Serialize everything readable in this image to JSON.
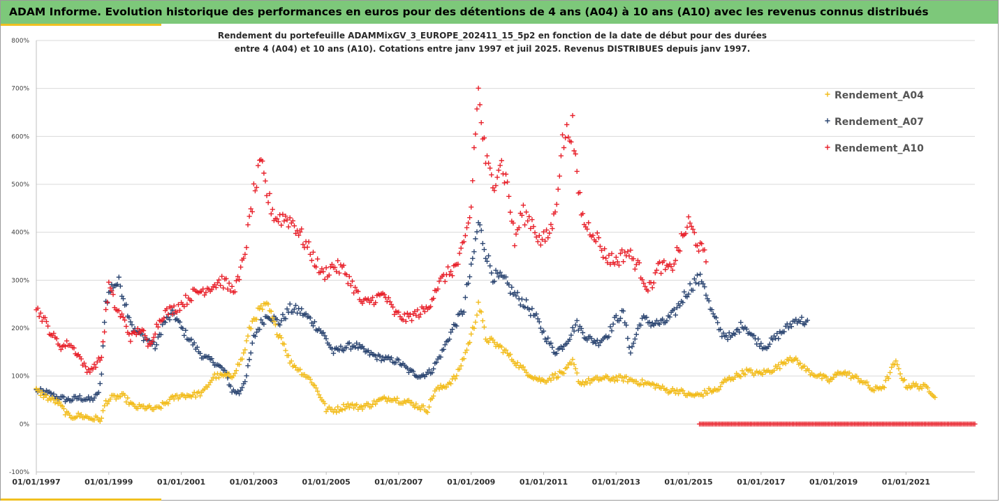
{
  "header": {
    "title": "ADAM Informe. Evolution historique des performances en euros pour des détentions de 4 ans (A04) à 10 ans (A10) avec les revenus connus distribués"
  },
  "chart_data": {
    "type": "scatter",
    "subtitle_line1": "Rendement du portefeuille ADAMMixGV_3_EUROPE_202411_15_5p2  en fonction de la date de début pour des durées",
    "subtitle_line2": "entre 4 (A04) et 10 ans (A10). Cotations entre janv 1997 et juil 2025. Revenus DISTRIBUES depuis janv 1997.",
    "xlim": [
      1997.0,
      2022.9
    ],
    "ylim": [
      -100,
      800
    ],
    "y_ticks": [
      "-100%",
      "0%",
      "100%",
      "200%",
      "300%",
      "400%",
      "500%",
      "600%",
      "700%",
      "800%"
    ],
    "y_tick_values": [
      -100,
      0,
      100,
      200,
      300,
      400,
      500,
      600,
      700,
      800
    ],
    "x_ticks": [
      "01/01/1997",
      "01/01/1999",
      "01/01/2001",
      "01/01/2003",
      "01/01/2005",
      "01/01/2007",
      "01/01/2009",
      "01/01/2011",
      "01/01/2013",
      "01/01/2015",
      "01/01/2017",
      "01/01/2019",
      "01/01/2021"
    ],
    "x_tick_values": [
      1997,
      1999,
      2001,
      2003,
      2005,
      2007,
      2009,
      2011,
      2013,
      2015,
      2017,
      2019,
      2021
    ],
    "grid": "horizontal",
    "legend_position": "right",
    "marker": "+",
    "series": [
      {
        "name": "Rendement_A04",
        "color": "#f2bc1b",
        "x": [
          1997.0,
          1997.3,
          1997.6,
          1997.9,
          1998.2,
          1998.5,
          1998.8,
          1998.9,
          1999.1,
          1999.4,
          1999.7,
          2000.0,
          2000.3,
          2000.5,
          2000.8,
          2001.0,
          2001.3,
          2001.6,
          2001.9,
          2002.1,
          2002.4,
          2002.7,
          2002.9,
          2003.0,
          2003.2,
          2003.4,
          2003.6,
          2003.8,
          2004.0,
          2004.3,
          2004.6,
          2004.9,
          2005.0,
          2005.3,
          2005.6,
          2005.9,
          2006.2,
          2006.5,
          2006.8,
          2007.0,
          2007.3,
          2007.6,
          2007.8,
          2008.0,
          2008.3,
          2008.6,
          2008.9,
          2009.1,
          2009.2,
          2009.4,
          2009.6,
          2009.9,
          2010.2,
          2010.5,
          2010.8,
          2011.0,
          2011.3,
          2011.6,
          2011.8,
          2012.0,
          2012.3,
          2012.6,
          2012.9,
          2013.2,
          2013.5,
          2013.8,
          2014.1,
          2014.4,
          2014.7,
          2015.0,
          2015.3,
          2015.6,
          2015.8,
          2016.0,
          2016.3,
          2016.6,
          2016.9,
          2017.2,
          2017.5,
          2017.8,
          2018.0,
          2018.3,
          2018.6,
          2018.9,
          2019.2,
          2019.5,
          2019.8,
          2020.1,
          2020.4,
          2020.7,
          2021.0,
          2021.3,
          2021.6,
          2021.8
        ],
        "values": [
          70,
          55,
          45,
          15,
          18,
          12,
          10,
          45,
          55,
          58,
          35,
          35,
          30,
          40,
          55,
          60,
          60,
          65,
          100,
          100,
          100,
          140,
          200,
          220,
          240,
          245,
          200,
          175,
          130,
          110,
          90,
          50,
          30,
          30,
          40,
          35,
          40,
          50,
          55,
          50,
          45,
          35,
          30,
          70,
          80,
          100,
          160,
          210,
          255,
          180,
          170,
          155,
          130,
          110,
          95,
          90,
          100,
          110,
          130,
          85,
          90,
          95,
          95,
          95,
          90,
          85,
          80,
          70,
          70,
          60,
          60,
          70,
          70,
          90,
          100,
          110,
          105,
          110,
          120,
          140,
          130,
          110,
          100,
          90,
          110,
          100,
          90,
          70,
          80,
          130,
          80,
          80,
          75,
          60
        ]
      },
      {
        "name": "Rendement_A07",
        "color": "#2b4571",
        "x": [
          1997.0,
          1997.3,
          1997.6,
          1997.9,
          1998.2,
          1998.5,
          1998.7,
          1998.8,
          1998.9,
          1999.1,
          1999.3,
          1999.5,
          1999.7,
          2000.0,
          2000.3,
          2000.5,
          2000.8,
          2001.0,
          2001.3,
          2001.6,
          2001.9,
          2002.2,
          2002.4,
          2002.6,
          2002.8,
          2003.0,
          2003.2,
          2003.4,
          2003.7,
          2004.0,
          2004.3,
          2004.6,
          2004.9,
          2005.2,
          2005.5,
          2005.8,
          2006.1,
          2006.4,
          2006.7,
          2007.0,
          2007.3,
          2007.6,
          2007.9,
          2008.2,
          2008.5,
          2008.8,
          2008.9,
          2009.0,
          2009.2,
          2009.4,
          2009.6,
          2009.9,
          2010.2,
          2010.5,
          2010.8,
          2011.0,
          2011.3,
          2011.5,
          2011.7,
          2011.9,
          2012.2,
          2012.5,
          2012.8,
          2013.0,
          2013.2,
          2013.4,
          2013.7,
          2014.0,
          2014.3,
          2014.6,
          2014.9,
          2015.2,
          2015.4,
          2015.6,
          2015.9,
          2016.2,
          2016.5,
          2016.8,
          2017.1,
          2017.4,
          2017.7,
          2018.0,
          2018.3
        ],
        "values": [
          70,
          65,
          55,
          50,
          55,
          50,
          60,
          100,
          250,
          290,
          295,
          240,
          195,
          180,
          160,
          210,
          230,
          200,
          170,
          140,
          130,
          110,
          70,
          65,
          100,
          180,
          210,
          230,
          210,
          240,
          235,
          215,
          190,
          150,
          160,
          165,
          150,
          140,
          135,
          130,
          110,
          100,
          110,
          150,
          200,
          240,
          290,
          320,
          420,
          360,
          310,
          300,
          270,
          250,
          220,
          190,
          150,
          160,
          180,
          210,
          180,
          170,
          190,
          220,
          230,
          150,
          220,
          210,
          210,
          230,
          270,
          300,
          300,
          240,
          190,
          180,
          210,
          180,
          160,
          180,
          200,
          220,
          210
        ]
      },
      {
        "name": "Rendement_A10",
        "color": "#e8202a",
        "x": [
          1997.0,
          1997.2,
          1997.4,
          1997.7,
          1997.9,
          1998.2,
          1998.4,
          1998.6,
          1998.8,
          1999.0,
          1999.2,
          1999.4,
          1999.6,
          1999.9,
          2000.1,
          2000.3,
          2000.5,
          2000.8,
          2001.0,
          2001.3,
          2001.6,
          2001.9,
          2002.1,
          2002.4,
          2002.6,
          2002.8,
          2003.0,
          2003.2,
          2003.4,
          2003.6,
          2003.9,
          2004.1,
          2004.4,
          2004.7,
          2004.9,
          2005.2,
          2005.5,
          2005.8,
          2006.0,
          2006.3,
          2006.6,
          2006.9,
          2007.2,
          2007.5,
          2007.8,
          2008.0,
          2008.3,
          2008.6,
          2008.8,
          2009.0,
          2009.1,
          2009.2,
          2009.4,
          2009.6,
          2009.8,
          2010.0,
          2010.2,
          2010.4,
          2010.7,
          2010.9,
          2011.1,
          2011.3,
          2011.5,
          2011.6,
          2011.8,
          2011.9,
          2012.1,
          2012.4,
          2012.7,
          2013.0,
          2013.3,
          2013.6,
          2013.9,
          2014.2,
          2014.5,
          2014.8,
          2015.0,
          2015.3,
          2015.5
        ],
        "values": [
          240,
          220,
          190,
          160,
          170,
          140,
          110,
          120,
          140,
          290,
          240,
          220,
          180,
          200,
          160,
          200,
          230,
          240,
          250,
          270,
          280,
          290,
          300,
          280,
          300,
          380,
          480,
          540,
          470,
          430,
          430,
          420,
          380,
          340,
          310,
          330,
          320,
          280,
          250,
          260,
          270,
          230,
          220,
          230,
          240,
          280,
          310,
          330,
          370,
          450,
          600,
          690,
          550,
          500,
          550,
          500,
          380,
          440,
          420,
          380,
          390,
          430,
          580,
          600,
          620,
          520,
          420,
          400,
          350,
          340,
          360,
          330,
          280,
          330,
          320,
          380,
          420,
          370,
          340
        ]
      },
      {
        "name": "",
        "color": "#e8202a",
        "x": [
          2015.3,
          2022.9
        ],
        "values": [
          0,
          0
        ],
        "flat": true
      }
    ]
  }
}
